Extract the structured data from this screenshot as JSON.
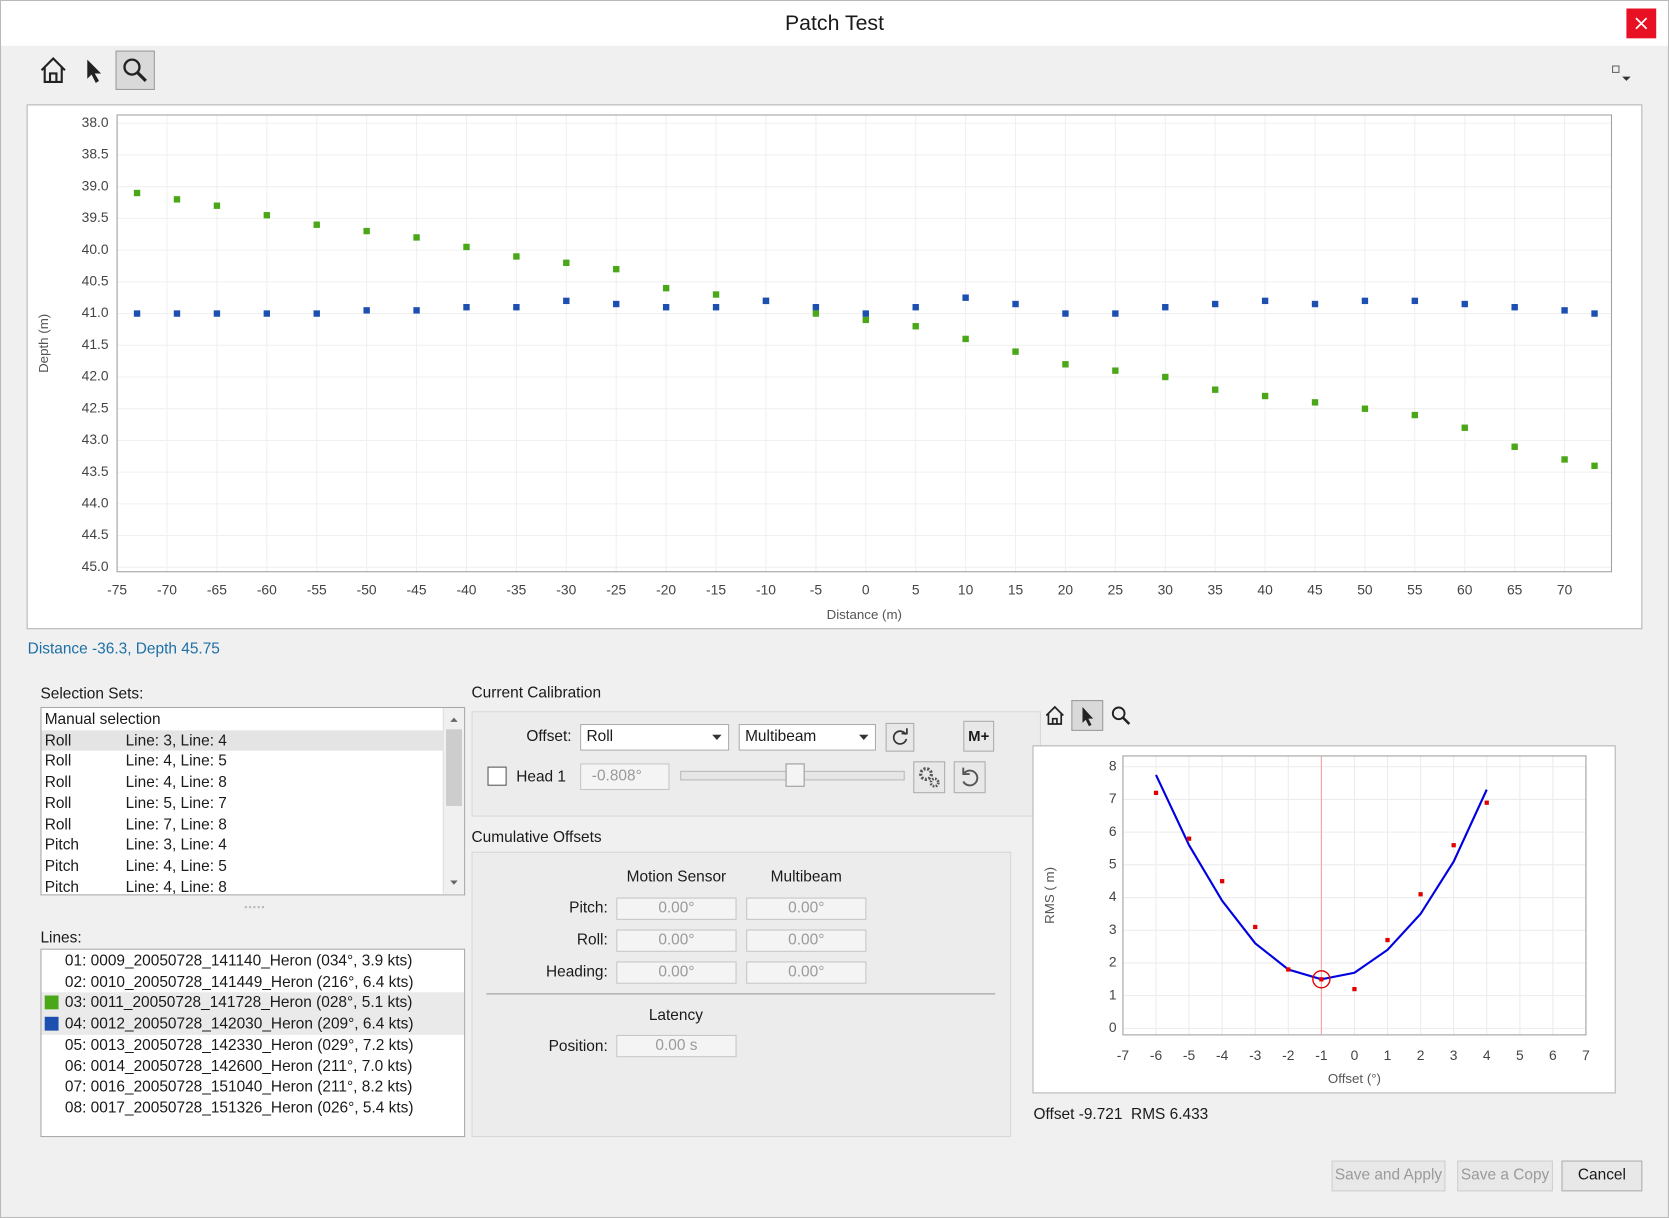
{
  "window": {
    "title": "Patch Test"
  },
  "chart_data": [
    {
      "type": "scatter",
      "x_label": "Distance (m)",
      "y_label": "Depth (m)",
      "xlim": [
        -75,
        74.7
      ],
      "ylim": [
        37.87,
        45.07
      ],
      "y_inverted": true,
      "grid": true,
      "xticks": [
        -75,
        -70,
        -65,
        -60,
        -55,
        -50,
        -45,
        -40,
        -35,
        -30,
        -25,
        -20,
        -15,
        -10,
        -5,
        0,
        5,
        10,
        15,
        20,
        25,
        30,
        35,
        40,
        45,
        50,
        55,
        60,
        65,
        70
      ],
      "yticks": [
        {
          "value": 38,
          "label": "38.0"
        },
        38.5,
        {
          "value": 39,
          "label": "39.0"
        },
        39.5,
        {
          "value": 40,
          "label": "40.0"
        },
        40.5,
        {
          "value": 41,
          "label": "41.0"
        },
        41.5,
        {
          "value": 42,
          "label": "42.0"
        },
        42.5,
        {
          "value": 43,
          "label": "43.0"
        },
        43.5,
        {
          "value": 44,
          "label": "44.0"
        },
        44.5,
        {
          "value": 45,
          "label": "45.0"
        }
      ],
      "series": [
        {
          "color": "#4aa818",
          "x": [
            -73,
            -69,
            -65,
            -60,
            -55,
            -50,
            -45,
            -40,
            -35,
            -30,
            -25,
            -20,
            -15,
            -10,
            -5,
            0,
            5,
            10,
            15,
            20,
            25,
            30,
            35,
            40,
            45,
            50,
            55,
            60,
            65,
            70,
            73
          ],
          "values": [
            39.1,
            39.2,
            39.3,
            39.45,
            39.6,
            39.7,
            39.8,
            39.95,
            40.1,
            40.2,
            40.3,
            40.6,
            40.7,
            40.8,
            41.0,
            41.1,
            41.2,
            41.4,
            41.6,
            41.8,
            41.9,
            42.0,
            42.2,
            42.3,
            42.4,
            42.5,
            42.6,
            42.8,
            43.1,
            43.3,
            43.4
          ]
        },
        {
          "color": "#1c4fb0",
          "x": [
            -73,
            -69,
            -65,
            -60,
            -55,
            -50,
            -45,
            -40,
            -35,
            -30,
            -25,
            -20,
            -15,
            -10,
            -5,
            0,
            5,
            10,
            15,
            20,
            25,
            30,
            35,
            40,
            45,
            50,
            55,
            60,
            65,
            70,
            73
          ],
          "values": [
            41.0,
            41.0,
            41.0,
            41.0,
            41.0,
            40.95,
            40.95,
            40.9,
            40.9,
            40.8,
            40.85,
            40.9,
            40.9,
            40.8,
            40.9,
            41.0,
            40.9,
            40.75,
            40.85,
            41.0,
            41.0,
            40.9,
            40.85,
            40.8,
            40.85,
            40.8,
            40.8,
            40.85,
            40.9,
            40.95,
            41.0
          ]
        }
      ]
    },
    {
      "type": "scatter",
      "x_label": "Offset (°)",
      "y_label": "RMS ( m)",
      "xlim": [
        -7,
        7
      ],
      "ylim": [
        -0.2,
        8.33
      ],
      "grid": true,
      "xticks": [
        -7,
        -6,
        -5,
        -4,
        -3,
        -2,
        -1,
        0,
        1,
        2,
        3,
        4,
        5,
        6,
        7
      ],
      "yticks": [
        0,
        1,
        2,
        3,
        4,
        5,
        6,
        7,
        8
      ],
      "selected": {
        "x": -1,
        "y": 1.5
      },
      "series": [
        {
          "style": "line",
          "color": "#0000e0",
          "x": [
            -6,
            -5,
            -4,
            -3,
            -2,
            -1,
            0,
            1,
            2,
            3,
            4
          ],
          "values": [
            7.75,
            5.6,
            3.9,
            2.6,
            1.8,
            1.5,
            1.7,
            2.4,
            3.5,
            5.1,
            7.3
          ]
        },
        {
          "style": "points",
          "color": "#e00000",
          "x": [
            -6,
            -5,
            -4,
            -3,
            -2,
            -1,
            0,
            1,
            2,
            3,
            4
          ],
          "values": [
            7.2,
            5.8,
            4.5,
            3.1,
            1.8,
            1.5,
            1.2,
            2.7,
            4.1,
            5.6,
            6.9
          ]
        }
      ]
    }
  ],
  "main_status": "Distance -36.3, Depth 45.75",
  "selection_sets": {
    "label": "Selection Sets:",
    "rows": [
      [
        "Manual selection"
      ],
      [
        "Roll",
        "Line: 3, Line: 4"
      ],
      [
        "Roll",
        "Line: 4, Line: 5"
      ],
      [
        "Roll",
        "Line: 4, Line: 8"
      ],
      [
        "Roll",
        "Line: 5, Line: 7"
      ],
      [
        "Roll",
        "Line: 7, Line: 8"
      ],
      [
        "Pitch",
        "Line: 3, Line: 4"
      ],
      [
        "Pitch",
        "Line: 4, Line: 5"
      ],
      [
        "Pitch",
        "Line: 4, Line: 8"
      ]
    ]
  },
  "lines": {
    "label": "Lines:",
    "items": [
      {
        "text": "01: 0009_20050728_141140_Heron (034°, 3.9 kts)"
      },
      {
        "text": "02: 0010_20050728_141449_Heron (216°, 6.4 kts)"
      },
      {
        "text": "03: 0011_20050728_141728_Heron (028°, 5.1 kts)",
        "color": "#4aa818"
      },
      {
        "text": "04: 0012_20050728_142030_Heron (209°, 6.4 kts)",
        "color": "#1c4fb0"
      },
      {
        "text": "05: 0013_20050728_142330_Heron (029°, 7.2 kts)"
      },
      {
        "text": "06: 0014_20050728_142600_Heron (211°, 7.0 kts)"
      },
      {
        "text": "07: 0016_20050728_151040_Heron (211°, 8.2 kts)"
      },
      {
        "text": "08: 0017_20050728_151326_Heron (026°, 5.4 kts)"
      }
    ]
  },
  "calibration": {
    "label": "Current Calibration",
    "offset_label": "Offset:",
    "offset_type": "Roll",
    "sensor": "Multibeam",
    "mplus": "M+",
    "head_label": "Head 1",
    "head_value": "-0.808°"
  },
  "cumulative": {
    "label": "Cumulative Offsets",
    "columns": [
      "Motion Sensor",
      "Multibeam"
    ],
    "rows": [
      {
        "label": "Pitch:",
        "values": [
          "0.00°",
          "0.00°"
        ]
      },
      {
        "label": "Roll:",
        "values": [
          "0.00°",
          "0.00°"
        ]
      },
      {
        "label": "Heading:",
        "values": [
          "0.00°",
          "0.00°"
        ]
      }
    ],
    "latency_label": "Latency",
    "position_label": "Position:",
    "position_value": "0.00 s"
  },
  "rms_status": "Offset -9.721  RMS 6.433",
  "buttons": [
    "Save and Apply",
    "Save a Copy",
    "Cancel"
  ]
}
